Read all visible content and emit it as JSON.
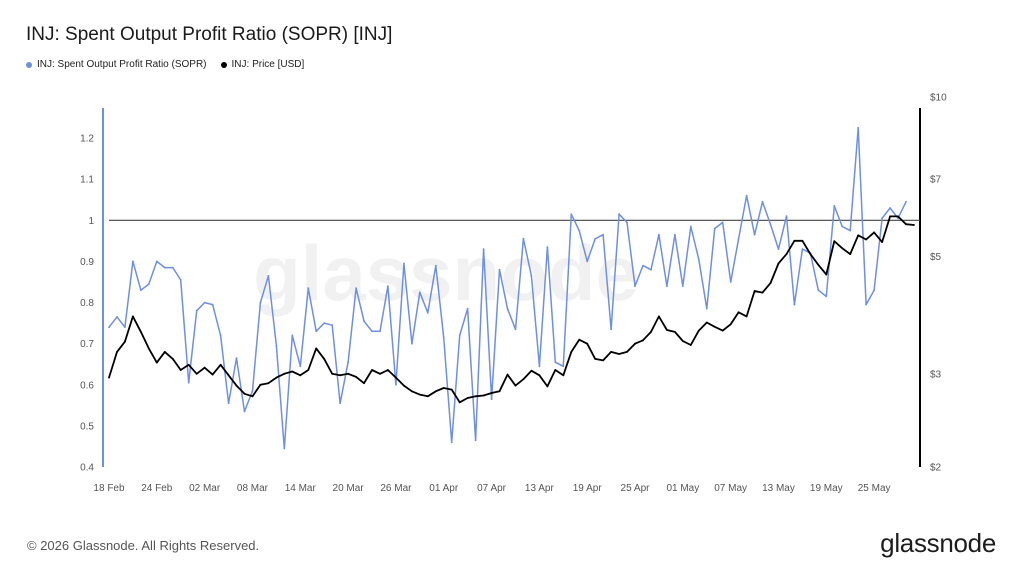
{
  "page": {
    "title": "INJ: Spent Output Profit Ratio (SOPR) [INJ]",
    "footer": "© 2026 Glassnode. All Rights Reserved.",
    "logo": "glassnode",
    "watermark": "glassnode"
  },
  "chart_data": {
    "type": "line",
    "legend_placement": "top-left",
    "grid": false,
    "colors": {
      "sopr": "#6f8fe0",
      "price": "#000000",
      "reference": "#444444"
    },
    "x_ticks": [
      "18 Feb",
      "24 Feb",
      "02 Mar",
      "08 Mar",
      "14 Mar",
      "20 Mar",
      "26 Mar",
      "01 Apr",
      "07 Apr",
      "13 Apr",
      "19 Apr",
      "25 Apr",
      "01 May",
      "07 May",
      "13 May",
      "19 May",
      "25 May"
    ],
    "left_axis": {
      "ticks": [
        "0.4",
        "0.5",
        "0.6",
        "0.7",
        "0.8",
        "0.9",
        "1",
        "1.1",
        "1.2"
      ],
      "range": [
        0.4,
        1.3
      ]
    },
    "right_axis": {
      "scale": "log",
      "ticks": [
        "$2",
        "$3",
        "$5",
        "$7",
        "$10"
      ],
      "range": [
        2,
        10
      ]
    },
    "reference_line": 1,
    "series": [
      {
        "name": "INJ: Spent Output Profit Ratio (SOPR)",
        "axis": "left",
        "values": [
          0.74,
          0.765,
          0.74,
          0.9,
          0.83,
          0.845,
          0.9,
          0.885,
          0.885,
          0.855,
          0.605,
          0.78,
          0.8,
          0.795,
          0.72,
          0.555,
          0.665,
          0.535,
          0.585,
          0.8,
          0.865,
          0.695,
          0.445,
          0.72,
          0.645,
          0.835,
          0.73,
          0.75,
          0.745,
          0.555,
          0.655,
          0.835,
          0.755,
          0.73,
          0.73,
          0.84,
          0.6,
          0.895,
          0.7,
          0.825,
          0.775,
          0.89,
          0.715,
          0.46,
          0.72,
          0.785,
          0.465,
          0.93,
          0.565,
          0.88,
          0.785,
          0.735,
          0.955,
          0.865,
          0.645,
          0.935,
          0.655,
          0.645,
          1.015,
          0.975,
          0.9,
          0.955,
          0.965,
          0.735,
          1.015,
          0.995,
          0.84,
          0.89,
          0.88,
          0.965,
          0.84,
          0.965,
          0.84,
          0.985,
          0.905,
          0.785,
          0.98,
          0.995,
          0.85,
          0.955,
          1.06,
          0.965,
          1.045,
          0.99,
          0.93,
          1.01,
          0.795,
          0.93,
          0.92,
          0.83,
          0.815,
          1.035,
          0.985,
          0.975,
          1.225,
          0.795,
          0.83,
          1.005,
          1.03,
          1.005,
          1.045
        ]
      },
      {
        "name": "INJ: Price [USD]",
        "axis": "right",
        "values": [
          2.95,
          3.3,
          3.45,
          3.85,
          3.6,
          3.35,
          3.15,
          3.3,
          3.2,
          3.05,
          3.12,
          3.0,
          3.08,
          2.99,
          3.12,
          2.98,
          2.85,
          2.75,
          2.72,
          2.86,
          2.88,
          2.95,
          3.0,
          3.03,
          2.98,
          3.05,
          3.35,
          3.2,
          3.0,
          2.98,
          3.0,
          2.96,
          2.88,
          3.05,
          3.0,
          3.05,
          2.95,
          2.85,
          2.78,
          2.74,
          2.72,
          2.78,
          2.82,
          2.8,
          2.65,
          2.7,
          2.72,
          2.73,
          2.76,
          2.78,
          2.99,
          2.85,
          2.93,
          3.04,
          2.98,
          2.84,
          3.05,
          2.98,
          3.3,
          3.48,
          3.42,
          3.2,
          3.18,
          3.3,
          3.27,
          3.3,
          3.42,
          3.47,
          3.6,
          3.85,
          3.63,
          3.6,
          3.46,
          3.4,
          3.62,
          3.75,
          3.68,
          3.62,
          3.72,
          3.92,
          3.85,
          4.3,
          4.27,
          4.45,
          4.85,
          5.05,
          5.35,
          5.35,
          5.05,
          4.82,
          4.62,
          5.34,
          5.18,
          5.05,
          5.48,
          5.38,
          5.55,
          5.32,
          5.95,
          5.95,
          5.75,
          5.73
        ]
      }
    ]
  }
}
